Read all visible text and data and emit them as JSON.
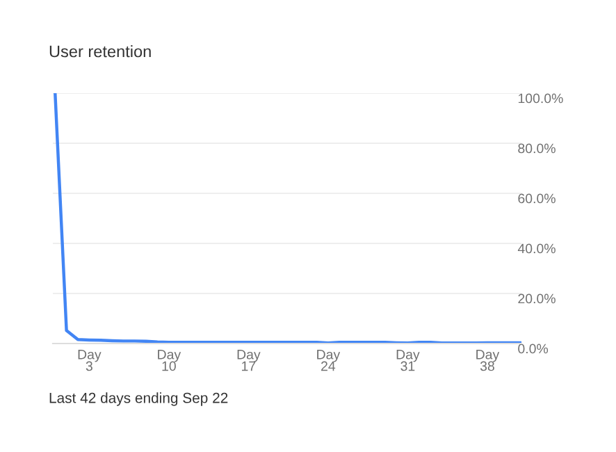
{
  "chart_data": {
    "type": "line",
    "title": "User retention",
    "categories": [
      null,
      null,
      null,
      "Day\n3",
      null,
      null,
      null,
      null,
      null,
      null,
      "Day\n10",
      null,
      null,
      null,
      null,
      null,
      null,
      "Day\n17",
      null,
      null,
      null,
      null,
      null,
      null,
      "Day\n24",
      null,
      null,
      null,
      null,
      null,
      null,
      "Day\n31",
      null,
      null,
      null,
      null,
      null,
      null,
      "Day\n38",
      null,
      null,
      null
    ],
    "series": [
      {
        "color": "#4285f4",
        "values": [
          100,
          5.2,
          1.6,
          1.4,
          1.3,
          1.1,
          1.0,
          1.0,
          0.9,
          0.6,
          0.5,
          0.5,
          0.5,
          0.5,
          0.5,
          0.5,
          0.5,
          0.5,
          0.5,
          0.5,
          0.5,
          0.5,
          0.5,
          0.5,
          0.2,
          0.5,
          0.5,
          0.5,
          0.5,
          0.5,
          0.3,
          0.2,
          0.5,
          0.5,
          0.2,
          0.2,
          0.2,
          0.2,
          0.3,
          0.3,
          0.3,
          0.3
        ]
      }
    ],
    "ylim": [
      0,
      100
    ],
    "yticks": [
      {
        "value": 0,
        "label": "0.0%"
      },
      {
        "value": 20,
        "label": "20.0%"
      },
      {
        "value": 40,
        "label": "40.0%"
      },
      {
        "value": 60,
        "label": "60.0%"
      },
      {
        "value": 80,
        "label": "80.0%"
      },
      {
        "value": 100,
        "label": "100.0%"
      }
    ],
    "grid": "y",
    "marker": "none",
    "line_style": "solid",
    "annotations": [
      "Last 42 days ending Sep 22"
    ]
  }
}
